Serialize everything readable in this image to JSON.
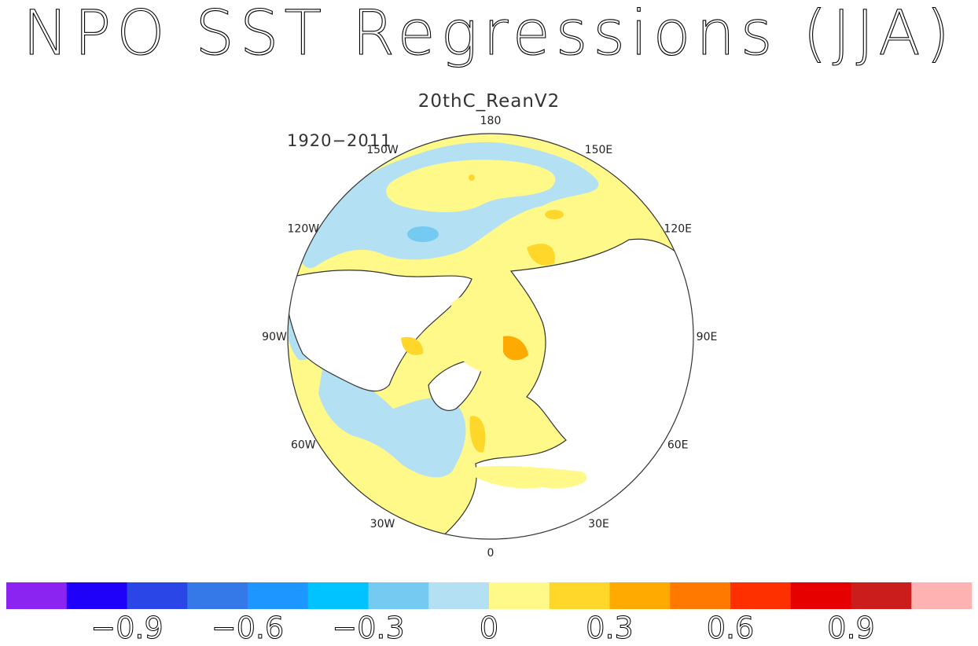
{
  "title": "NPO SST Regressions (JJA)",
  "subtitle": "20thC_ReanV2",
  "period": "1920−2011",
  "map": {
    "projection": "polar stereographic, north pole",
    "longitude_labels": [
      "180",
      "150E",
      "120E",
      "90E",
      "60E",
      "30E",
      "0",
      "30W",
      "60W",
      "90W",
      "120W",
      "150W"
    ],
    "land_color": "#ffffff",
    "coast_color": "#333333"
  },
  "colorbar": {
    "colors": [
      "#8b24f0",
      "#1f00f8",
      "#2b46e6",
      "#3578e8",
      "#1e96ff",
      "#00c3ff",
      "#75caf2",
      "#b3e0f2",
      "#fff98a",
      "#ffd72a",
      "#ffaa00",
      "#ff7800",
      "#ff3000",
      "#e60000",
      "#cc1d1d",
      "#ffb2b2"
    ],
    "tick_labels": [
      "−0.9",
      "−0.6",
      "−0.3",
      "0",
      "0.3",
      "0.6",
      "0.9"
    ]
  }
}
